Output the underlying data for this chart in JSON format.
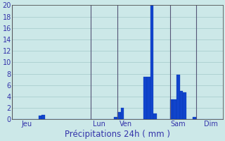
{
  "title": "Précipitations 24h ( mm )",
  "background_color": "#cce8e8",
  "plot_bg_color": "#cce8e8",
  "grid_color": "#aacece",
  "bar_color": "#1144cc",
  "bar_edge_color": "#0033aa",
  "ylim": [
    0,
    20
  ],
  "yticks": [
    0,
    2,
    4,
    6,
    8,
    10,
    12,
    14,
    16,
    18,
    20
  ],
  "day_labels": [
    "Jeu",
    "Lun",
    "Ven",
    "Sam",
    "Dim"
  ],
  "bar_values": [
    0,
    0,
    0,
    0,
    0,
    0,
    0,
    0,
    0.7,
    0.8,
    0,
    0,
    0,
    0,
    0,
    0,
    0,
    0,
    0,
    0,
    0,
    0,
    0,
    0,
    0,
    0,
    0,
    0,
    0,
    0,
    0,
    0.4,
    1.3,
    2.0,
    0,
    0,
    0,
    0,
    0,
    0,
    7.5,
    7.5,
    20.0,
    1.0,
    0,
    0,
    0,
    0,
    3.5,
    3.5,
    7.8,
    5.0,
    4.8,
    0,
    0,
    0.4,
    0,
    0,
    0,
    0,
    0,
    0,
    0,
    0
  ],
  "day_line_positions": [
    0,
    24,
    32,
    48,
    56
  ],
  "day_tick_positions": [
    4,
    26,
    34,
    50,
    60
  ],
  "xlabel_color": "#3333aa",
  "tick_color": "#3333aa",
  "axis_line_color": "#555555",
  "day_line_color": "#555577",
  "title_color": "#3333aa",
  "title_fontsize": 8.5
}
